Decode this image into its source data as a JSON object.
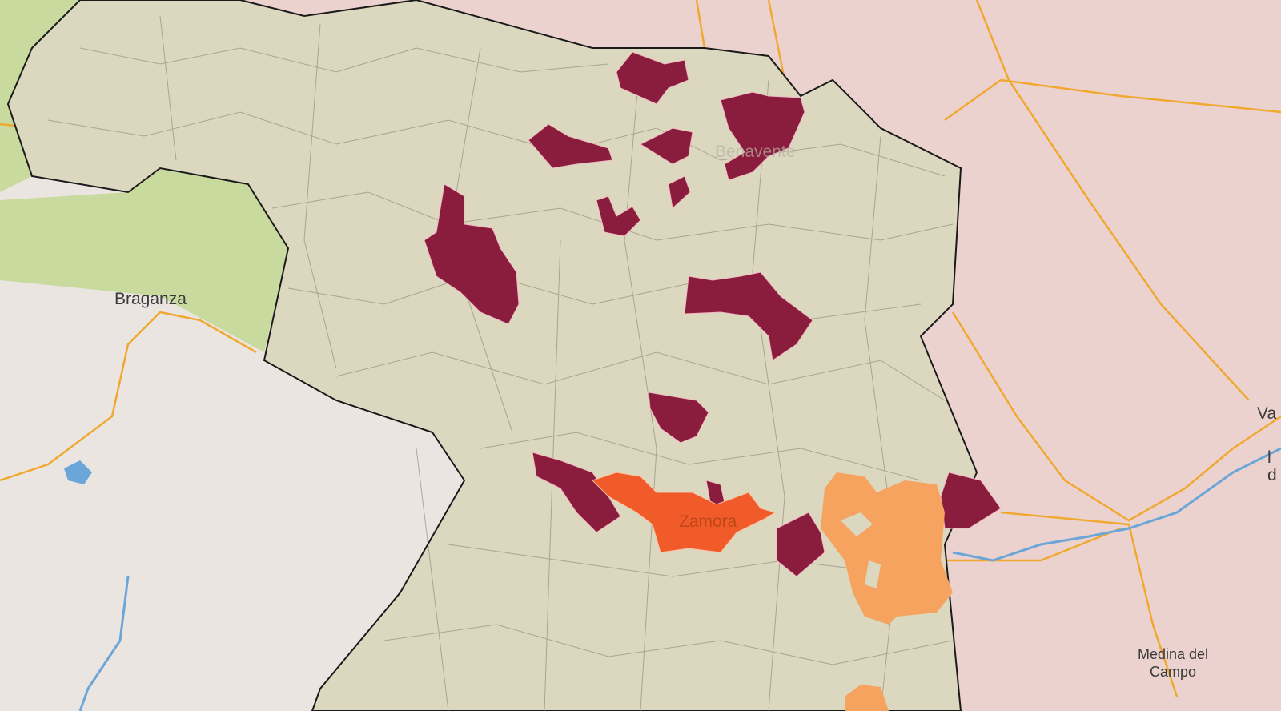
{
  "colors": {
    "province_fill": "#dcd8bf",
    "neighbor_province": "#ecd2cf",
    "portugal_bg": "#ebe5e1",
    "green_park": "#c8da9e",
    "highest_level": "#8a1c3d",
    "high_level": "#f15a29",
    "medium_level": "#f6a35f",
    "border": "#1a1a1a",
    "municipality_line": "#9c9886",
    "road": "#f0a830",
    "river": "#6aa6d8"
  },
  "labels": {
    "braganza": "Braganza",
    "benavente": "Benavente",
    "zamora": "Zamora",
    "valladolid_partial": "Va",
    "partial_l": "l",
    "partial_d": "d",
    "medina": "Medina del Campo"
  }
}
